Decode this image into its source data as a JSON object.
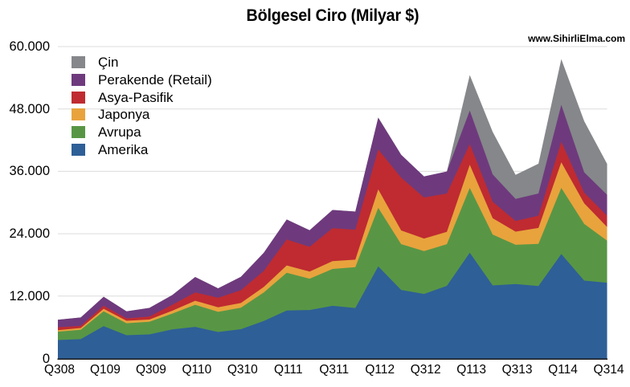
{
  "title": "Bölgesel Ciro (Milyar $)",
  "watermark": "www.SihirliElma.com",
  "colors": {
    "background": "#ffffff",
    "gridline": "#dcdcdc",
    "axis_line": "#1a1a1a",
    "text": "#000000"
  },
  "chart_data": {
    "type": "area",
    "stacked": true,
    "title": "Bölgesel Ciro (Milyar $)",
    "xlabel": "",
    "ylabel": "",
    "values_unit": "milyon $ (1.000 = 1 milyar $)",
    "ylim": [
      0,
      60000
    ],
    "grid": true,
    "y_tick_values": [
      0,
      12000,
      24000,
      36000,
      48000,
      60000
    ],
    "y_tick_labels": [
      "0",
      "12.000",
      "24.000",
      "36.000",
      "48.000",
      "60.000"
    ],
    "x_categories": [
      "Q308",
      "Q408",
      "Q109",
      "Q209",
      "Q309",
      "Q409",
      "Q110",
      "Q210",
      "Q310",
      "Q410",
      "Q111",
      "Q211",
      "Q311",
      "Q411",
      "Q112",
      "Q212",
      "Q312",
      "Q412",
      "Q113",
      "Q213",
      "Q313",
      "Q413",
      "Q114",
      "Q214",
      "Q314"
    ],
    "x_tick_labels": [
      "Q308",
      "Q109",
      "Q309",
      "Q110",
      "Q310",
      "Q111",
      "Q311",
      "Q112",
      "Q312",
      "Q113",
      "Q313",
      "Q114",
      "Q314"
    ],
    "x_tick_every": 2,
    "legend_position": "top-left",
    "legend_order_top_to_bottom": [
      "Çin",
      "Perakende (Retail)",
      "Asya-Pasifik",
      "Japonya",
      "Avrupa",
      "Amerika"
    ],
    "series": [
      {
        "name": "Amerika",
        "color": "#2e5f97",
        "values": [
          3553,
          3718,
          6223,
          4480,
          4634,
          5607,
          6092,
          5092,
          5640,
          7219,
          9218,
          9323,
          10126,
          9719,
          17714,
          13182,
          12423,
          13972,
          20341,
          14052,
          14310,
          13941,
          20098,
          14982,
          14577
        ]
      },
      {
        "name": "Avrupa",
        "color": "#589645",
        "values": [
          1598,
          1816,
          2857,
          2296,
          2421,
          3025,
          4236,
          3874,
          4130,
          5470,
          7256,
          6027,
          7098,
          7843,
          11256,
          8807,
          8235,
          8021,
          12464,
          9800,
          7556,
          8095,
          12703,
          10905,
          8091
        ]
      },
      {
        "name": "Japonya",
        "color": "#e8a33d",
        "values": [
          297,
          334,
          481,
          475,
          438,
          550,
          783,
          888,
          909,
          1068,
          1433,
          1383,
          1510,
          1456,
          3550,
          2645,
          2416,
          2362,
          4443,
          3135,
          2543,
          3073,
          4948,
          3963,
          2627
        ]
      },
      {
        "name": "Asya-Pasifik",
        "color": "#bf2b31",
        "values": [
          567,
          403,
          579,
          453,
          588,
          1155,
          1596,
          1820,
          2443,
          3086,
          4987,
          4743,
          6332,
          5751,
          7697,
          10153,
          7890,
          7382,
          3993,
          3162,
          2045,
          2371,
          3940,
          2044,
          2161
        ]
      },
      {
        "name": "Perakende (Retail)",
        "color": "#6e3a7d",
        "values": [
          1449,
          1624,
          1740,
          1380,
          1653,
          1870,
          2976,
          1825,
          2578,
          3500,
          3847,
          3191,
          3505,
          3501,
          6116,
          4399,
          4059,
          4229,
          6441,
          5241,
          4228,
          4259,
          7098,
          3917,
          4041
        ]
      },
      {
        "name": "Çin",
        "color": "#85878a",
        "values": [
          0,
          0,
          0,
          0,
          0,
          0,
          0,
          0,
          0,
          0,
          0,
          0,
          0,
          0,
          0,
          0,
          0,
          0,
          6830,
          8213,
          4641,
          5733,
          8807,
          9835,
          5935
        ]
      }
    ]
  }
}
